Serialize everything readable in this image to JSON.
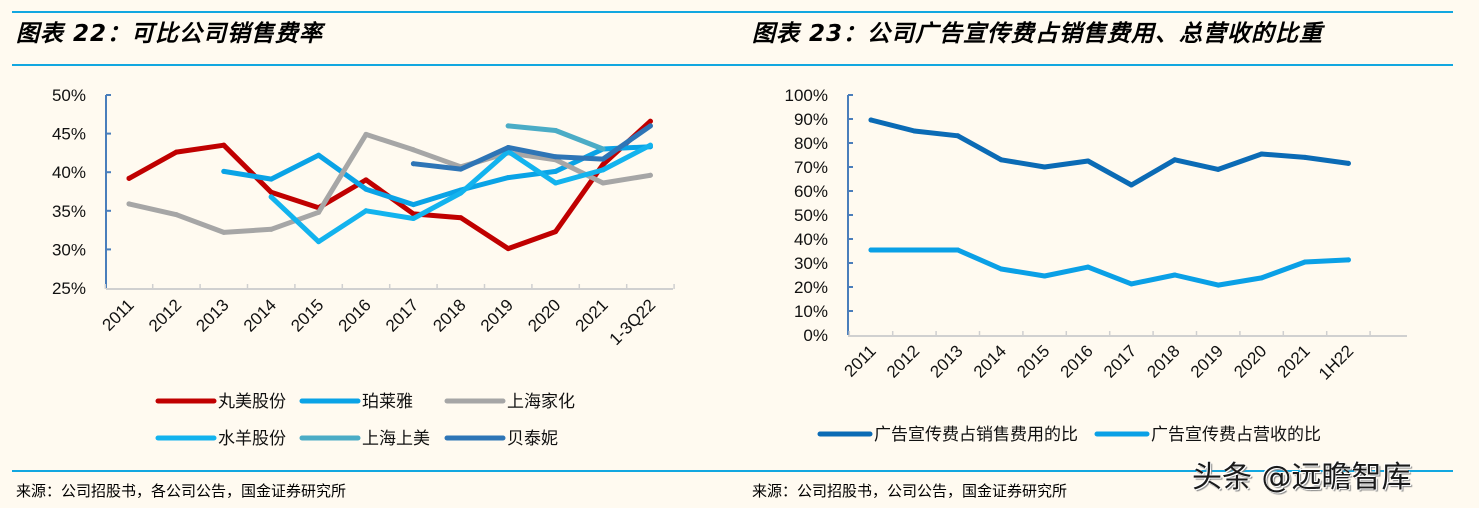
{
  "left_figure": {
    "title": "图表 22：可比公司销售费率",
    "source": "来源：公司招股书，各公司公告，国金证券研究所"
  },
  "right_figure": {
    "title": "图表 23：公司广告宣传费占销售费用、总营收的比重",
    "source": "来源：公司招股书，公司公告，国金证券研究所"
  },
  "watermark": "头条 @远瞻智库",
  "chart_data": [
    {
      "type": "line",
      "title": "可比公司销售费率",
      "xlabel": "",
      "ylabel": "",
      "ylim": [
        25,
        50
      ],
      "yticks": [
        "25%",
        "30%",
        "35%",
        "40%",
        "45%",
        "50%"
      ],
      "ytick_values": [
        25,
        30,
        35,
        40,
        45,
        50
      ],
      "categories": [
        "2011",
        "2012",
        "2013",
        "2014",
        "2015",
        "2016",
        "2017",
        "2018",
        "2019",
        "2020",
        "2021",
        "1-3Q22"
      ],
      "legend_position": "bottom",
      "grid": false,
      "series": [
        {
          "name": "丸美股份",
          "color": "#c00000",
          "values": [
            39.2,
            42.6,
            43.5,
            37.4,
            35.4,
            39.0,
            34.6,
            34.1,
            30.1,
            32.3,
            41.0,
            46.6
          ]
        },
        {
          "name": "珀莱雅",
          "color": "#0aa3e6",
          "values": [
            null,
            null,
            40.1,
            39.1,
            42.2,
            37.8,
            35.8,
            37.7,
            39.3,
            40.1,
            43.0,
            43.3
          ]
        },
        {
          "name": "上海家化",
          "color": "#a6a6a6",
          "values": [
            35.9,
            34.5,
            32.2,
            32.6,
            34.8,
            44.9,
            42.9,
            40.7,
            42.5,
            41.6,
            38.6,
            39.6
          ]
        },
        {
          "name": "水羊股份",
          "color": "#13b3ee",
          "values": [
            null,
            null,
            null,
            36.8,
            31.0,
            35.0,
            34.0,
            37.3,
            42.7,
            38.6,
            40.3,
            43.5
          ]
        },
        {
          "name": "上海上美",
          "color": "#4bacc6",
          "values": [
            null,
            null,
            null,
            null,
            null,
            null,
            null,
            null,
            46.0,
            45.4,
            43.0,
            null
          ]
        },
        {
          "name": "贝泰妮",
          "color": "#2e75b6",
          "values": [
            null,
            null,
            null,
            null,
            null,
            null,
            41.1,
            40.4,
            43.2,
            42.0,
            41.7,
            46.0
          ]
        }
      ]
    },
    {
      "type": "line",
      "title": "公司广告宣传费占销售费用、总营收的比重",
      "xlabel": "",
      "ylabel": "",
      "ylim": [
        0,
        100
      ],
      "yticks": [
        "0%",
        "10%",
        "20%",
        "30%",
        "40%",
        "50%",
        "60%",
        "70%",
        "80%",
        "90%",
        "100%"
      ],
      "ytick_values": [
        0,
        10,
        20,
        30,
        40,
        50,
        60,
        70,
        80,
        90,
        100
      ],
      "categories": [
        "2011",
        "2012",
        "2013",
        "2014",
        "2015",
        "2016",
        "2017",
        "2018",
        "2019",
        "2020",
        "2021",
        "1H22"
      ],
      "legend_position": "bottom",
      "grid": false,
      "series": [
        {
          "name": "广告宣传费占销售费用的比",
          "color": "#0b6bb5",
          "values": [
            89.6,
            85.0,
            83.0,
            73.0,
            70.0,
            72.5,
            62.5,
            73.0,
            69.0,
            75.4,
            74.0,
            71.5
          ]
        },
        {
          "name": "广告宣传费占营收的比",
          "color": "#0aa0e6",
          "values": [
            35.4,
            35.4,
            35.4,
            27.5,
            24.6,
            28.3,
            21.3,
            25.0,
            20.8,
            23.8,
            30.4,
            31.3
          ]
        }
      ]
    }
  ]
}
